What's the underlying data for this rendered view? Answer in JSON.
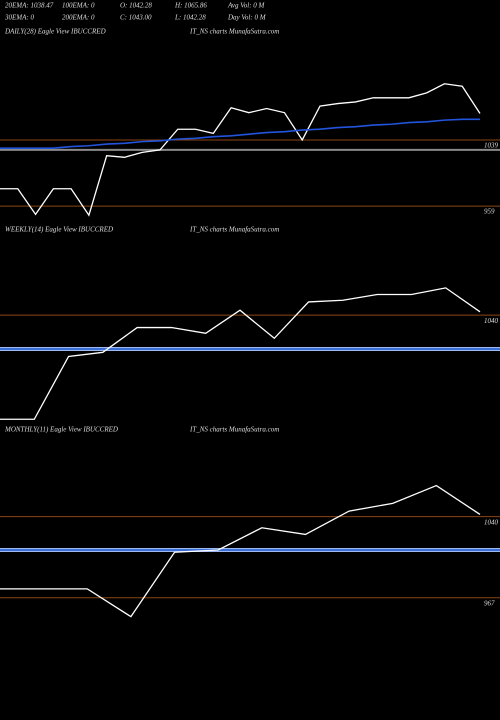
{
  "header": {
    "rows": [
      [
        "20EMA: 1038.47",
        "100EMA: 0",
        "O: 1042.28",
        "H: 1065.86",
        "Avg Vol: 0  M"
      ],
      [
        "30EMA: 0",
        "200EMA: 0",
        "C: 1043.00",
        "L: 1042.28",
        "Day Vol: 0  M"
      ]
    ]
  },
  "chart_data": [
    {
      "type": "line",
      "title": "DAILY(28) Eagle  View  IBUCCRED",
      "subtitle": "IT_NS charts MunafaSutra.com",
      "ylim": [
        918,
        1172
      ],
      "yticks": [
        1039,
        959
      ],
      "tick_color": "#8b4513",
      "ref_lines": [
        {
          "value": 1027,
          "color": "#8a8a8a"
        }
      ],
      "series": [
        {
          "color": "#ffffff",
          "values": [
            980,
            980,
            949,
            980,
            980,
            948,
            1020,
            1018,
            1024,
            1027,
            1052,
            1052,
            1047,
            1078,
            1072,
            1077,
            1072,
            1039,
            1080,
            1083,
            1085,
            1090,
            1090,
            1090,
            1096,
            1107,
            1104,
            1071
          ]
        },
        {
          "color": "#2255dd",
          "values": [
            1029,
            1029,
            1029,
            1029,
            1031,
            1032,
            1034,
            1035,
            1037,
            1038,
            1040,
            1041,
            1043,
            1044,
            1046,
            1048,
            1049,
            1051,
            1052,
            1054,
            1055,
            1057,
            1058,
            1060,
            1061,
            1063,
            1064,
            1064
          ]
        }
      ]
    },
    {
      "type": "line",
      "title": "WEEKLY(14) Eagle  View  IBUCCRED",
      "subtitle": "IT_NS charts MunafaSutra.com",
      "ylim": [
        901,
        1137
      ],
      "yticks": [
        1040
      ],
      "tick_color": "#8b4513",
      "ref_lines": [
        {
          "value": 999,
          "color": "#3a6fd8"
        }
      ],
      "series": [
        {
          "color": "#ffffff",
          "values": [
            914,
            914,
            990,
            995,
            1025,
            1025,
            1018,
            1046,
            1012,
            1056,
            1058,
            1065,
            1065,
            1073,
            1044
          ]
        }
      ]
    },
    {
      "type": "line",
      "title": "MONTHLY(11) Eagle  View  IBUCCRED",
      "subtitle": "IT_NS charts MunafaSutra.com",
      "ylim": [
        857,
        1118
      ],
      "yticks": [
        1040,
        967
      ],
      "tick_color": "#8b4513",
      "ref_lines": [
        {
          "value": 1010,
          "color": "#3a6fd8"
        }
      ],
      "series": [
        {
          "color": "#ffffff",
          "values": [
            975,
            975,
            975,
            950,
            1008,
            1010,
            1030,
            1024,
            1045,
            1052,
            1068,
            1042
          ]
        }
      ]
    }
  ]
}
